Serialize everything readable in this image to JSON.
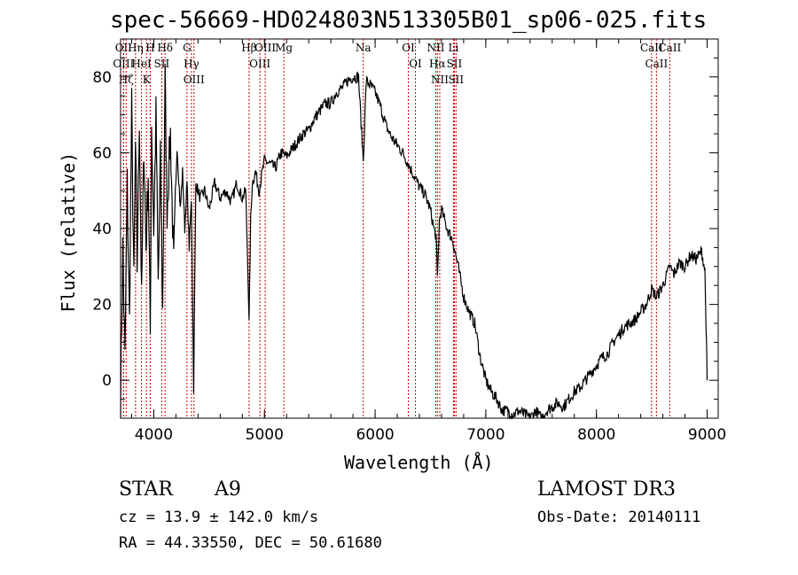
{
  "chart_data": {
    "type": "line",
    "title": "spec-56669-HD024803N513305B01_sp06-025.fits",
    "xlabel": "Wavelength (Å)",
    "ylabel": "Flux (relative)",
    "xlim": [
      3700,
      9100
    ],
    "ylim": [
      -10,
      90
    ],
    "xticks": [
      4000,
      5000,
      6000,
      7000,
      8000,
      9000
    ],
    "yticks": [
      0,
      20,
      40,
      60,
      80
    ],
    "grid": false,
    "line_color": "#000000",
    "marker_color": "#cc0000",
    "series": [
      {
        "name": "spectrum",
        "x": [
          3700,
          3720,
          3740,
          3760,
          3780,
          3800,
          3820,
          3835,
          3850,
          3870,
          3890,
          3910,
          3930,
          3950,
          3968,
          3980,
          4000,
          4020,
          4040,
          4060,
          4080,
          4102,
          4120,
          4150,
          4180,
          4210,
          4240,
          4260,
          4280,
          4300,
          4320,
          4340,
          4360,
          4380,
          4420,
          4460,
          4500,
          4550,
          4600,
          4650,
          4700,
          4750,
          4800,
          4830,
          4850,
          4861,
          4875,
          4890,
          4920,
          4950,
          5000,
          5050,
          5100,
          5150,
          5200,
          5250,
          5300,
          5350,
          5400,
          5450,
          5500,
          5550,
          5600,
          5650,
          5700,
          5750,
          5800,
          5850,
          5893,
          5920,
          5950,
          6000,
          6050,
          6100,
          6150,
          6200,
          6250,
          6300,
          6350,
          6400,
          6450,
          6500,
          6530,
          6550,
          6563,
          6580,
          6600,
          6650,
          6700,
          6750,
          6800,
          6850,
          6900,
          6950,
          7000,
          7050,
          7100,
          7150,
          7200,
          7250,
          7300,
          7350,
          7400,
          7450,
          7500,
          7550,
          7600,
          7650,
          7700,
          7750,
          7800,
          7850,
          7900,
          7950,
          8000,
          8050,
          8100,
          8150,
          8200,
          8250,
          8300,
          8350,
          8400,
          8450,
          8498,
          8542,
          8600,
          8662,
          8700,
          8750,
          8800,
          8850,
          8900,
          8950,
          8980,
          8995,
          9000
        ],
        "y": [
          -5,
          35,
          5,
          52,
          15,
          72,
          25,
          62,
          30,
          70,
          20,
          63,
          35,
          55,
          12,
          68,
          40,
          70,
          25,
          58,
          18,
          80,
          45,
          65,
          30,
          62,
          45,
          55,
          40,
          52,
          35,
          48,
          -2,
          52,
          48,
          50,
          45,
          52,
          48,
          50,
          47,
          52,
          48,
          50,
          30,
          15,
          42,
          52,
          55,
          50,
          58,
          57,
          56,
          60,
          59,
          61,
          63,
          65,
          66,
          69,
          71,
          73,
          73,
          76,
          77,
          79,
          80,
          80,
          58,
          79,
          78,
          76,
          72,
          67,
          64,
          62,
          60,
          57,
          54,
          51,
          49,
          45,
          40,
          38,
          27,
          42,
          45,
          40,
          37,
          30,
          22,
          18,
          15,
          6,
          0,
          -3,
          -5,
          -8,
          -8,
          -9,
          -8,
          -9,
          -10,
          -8,
          -10,
          -8,
          -7,
          -6,
          -7,
          -5,
          -3,
          -2,
          0,
          2,
          4,
          6,
          7,
          10,
          12,
          14,
          15,
          16,
          18,
          20,
          24,
          22,
          25,
          30,
          28,
          31,
          30,
          33,
          32,
          34,
          29,
          8,
          0
        ]
      }
    ],
    "line_markers": [
      {
        "wl": 3750,
        "label": "Hζ"
      },
      {
        "wl": 3727,
        "label": "OII"
      },
      {
        "wl": 3727,
        "label": "OIII"
      },
      {
        "wl": 3835,
        "label": "Hη"
      },
      {
        "wl": 3889,
        "label": "HeI"
      },
      {
        "wl": 3934,
        "label": "K"
      },
      {
        "wl": 3968,
        "label": "H"
      },
      {
        "wl": 4072,
        "label": "SII"
      },
      {
        "wl": 4102,
        "label": "Hδ"
      },
      {
        "wl": 4300,
        "label": "G"
      },
      {
        "wl": 4340,
        "label": "Hγ"
      },
      {
        "wl": 4363,
        "label": "OIII"
      },
      {
        "wl": 4861,
        "label": "Hβ"
      },
      {
        "wl": 4959,
        "label": "OIII"
      },
      {
        "wl": 5007,
        "label": "OIII"
      },
      {
        "wl": 5175,
        "label": "Mg"
      },
      {
        "wl": 5893,
        "label": "Na"
      },
      {
        "wl": 6300,
        "label": "OI"
      },
      {
        "wl": 6364,
        "label": "OI"
      },
      {
        "wl": 6548,
        "label": "NII"
      },
      {
        "wl": 6563,
        "label": "Hα"
      },
      {
        "wl": 6584,
        "label": "NII"
      },
      {
        "wl": 6708,
        "label": "Li"
      },
      {
        "wl": 6716,
        "label": "SII"
      },
      {
        "wl": 6731,
        "label": "SII"
      },
      {
        "wl": 8498,
        "label": "CaII"
      },
      {
        "wl": 8542,
        "label": "CaII"
      },
      {
        "wl": 8662,
        "label": "CaII"
      }
    ]
  },
  "info": {
    "class_label": "STAR",
    "subclass": "A9",
    "survey": "LAMOST DR3",
    "cz": "cz = 13.9 ± 142.0 km/s",
    "obs_date": "Obs-Date: 20140111",
    "coords": "RA =  44.33550, DEC =  50.61680"
  }
}
